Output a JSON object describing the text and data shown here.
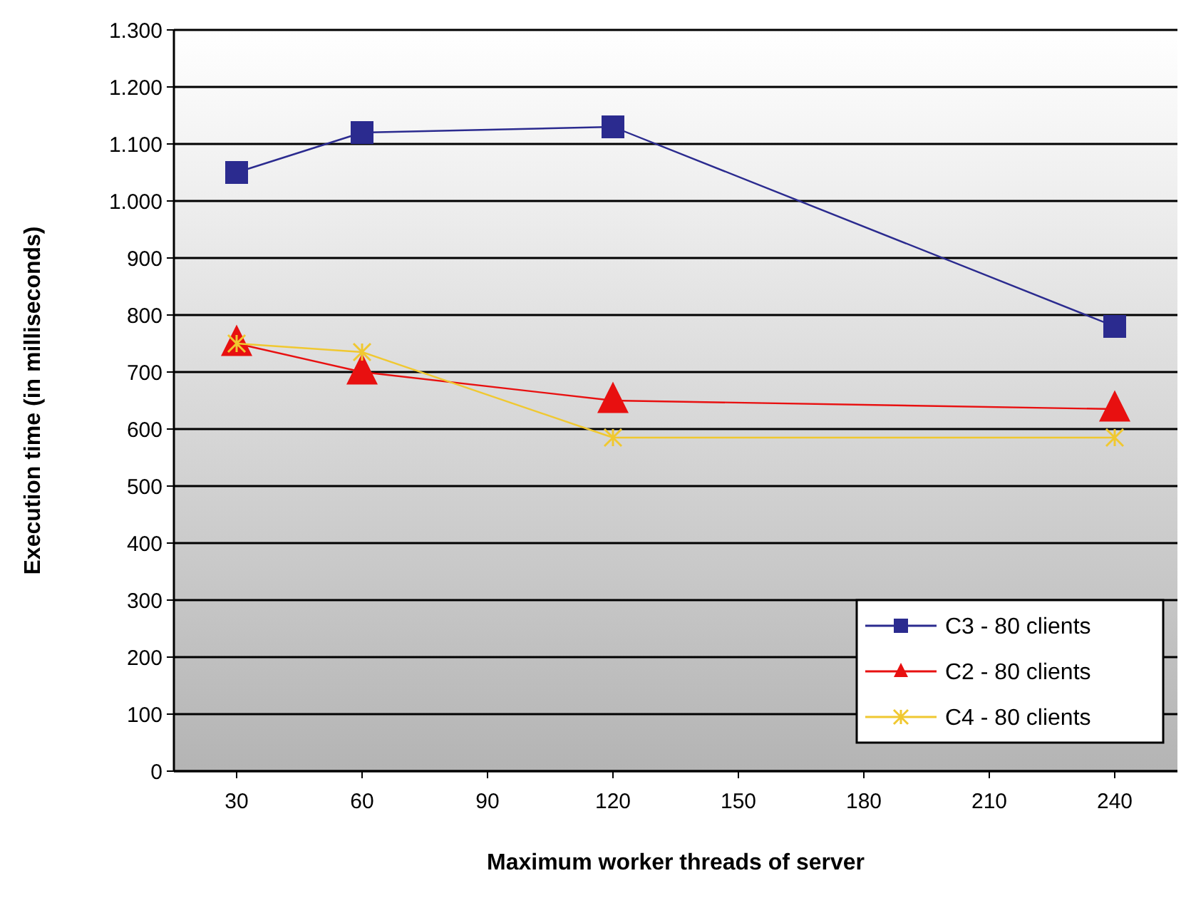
{
  "chart_data": {
    "type": "line",
    "xlabel": "Maximum worker threads of server",
    "ylabel": "Execution time (in milliseconds)",
    "xlim": [
      15,
      255
    ],
    "xticks": [
      30,
      60,
      90,
      120,
      150,
      180,
      210,
      240
    ],
    "ylim": [
      0,
      1300
    ],
    "yticks": [
      0,
      100,
      200,
      300,
      400,
      500,
      600,
      700,
      800,
      900,
      {
        "value": 1000,
        "label": "1.000"
      },
      {
        "value": 1100,
        "label": "1.100"
      },
      {
        "value": 1200,
        "label": "1.200"
      },
      {
        "value": 1300,
        "label": "1.300"
      }
    ],
    "grid": "y",
    "legend": "bottom right",
    "x": [
      30,
      60,
      120,
      240
    ],
    "series": [
      {
        "name": "C3 - 80 clients",
        "color": "#2b2b8f",
        "marker": "square",
        "values": [
          1050,
          1120,
          1130,
          780
        ]
      },
      {
        "name": "C2 - 80 clients",
        "color": "#e81010",
        "marker": "triangle",
        "values": [
          750,
          700,
          650,
          635
        ]
      },
      {
        "name": "C4 - 80 clients",
        "color": "#f0c830",
        "marker": "cross",
        "values": [
          750,
          735,
          585,
          585
        ]
      }
    ]
  }
}
